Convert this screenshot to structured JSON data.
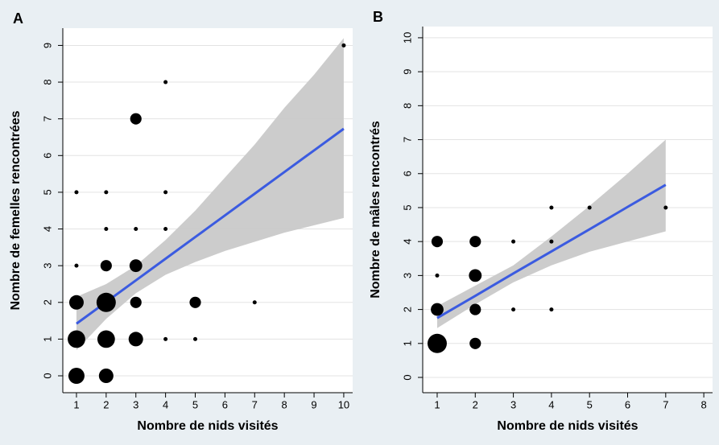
{
  "chart_data": [
    {
      "type": "scatter",
      "panel_label": "A",
      "xlabel": "Nombre de nids visités",
      "ylabel": "Nombre de femelles rencontrées",
      "x": [
        1,
        2,
        1,
        2,
        3,
        4,
        5,
        1,
        2,
        3,
        5,
        7,
        1,
        2,
        3,
        2,
        3,
        4,
        1,
        2,
        4,
        3,
        4,
        10
      ],
      "y": [
        0,
        0,
        1,
        1,
        1,
        1,
        1,
        2,
        2,
        2,
        2,
        2,
        3,
        3,
        3,
        4,
        4,
        4,
        5,
        5,
        5,
        7,
        8,
        9
      ],
      "sizes": [
        16,
        13,
        19,
        19,
        13,
        1,
        1,
        13,
        23,
        8,
        8,
        1,
        1,
        8,
        10,
        1,
        1,
        1,
        1,
        1,
        1,
        8,
        1,
        1
      ],
      "color": "#000000",
      "fit": {
        "color": "#3b5be0",
        "band_color": "#c9c9c9",
        "x": [
          1,
          2,
          3,
          4,
          5,
          6,
          7,
          8,
          9,
          10
        ],
        "values": [
          1.42,
          2.01,
          2.6,
          3.19,
          3.78,
          4.37,
          4.96,
          5.55,
          6.14,
          6.73
        ],
        "lower": [
          0.7,
          1.55,
          2.25,
          2.75,
          3.1,
          3.4,
          3.65,
          3.9,
          4.1,
          4.3
        ],
        "upper": [
          2.15,
          2.5,
          3.0,
          3.7,
          4.5,
          5.4,
          6.3,
          7.3,
          8.2,
          9.2
        ]
      },
      "xlim": [
        0.54,
        10.3
      ],
      "ylim": [
        -0.46,
        9.47
      ],
      "xticks": [
        1,
        2,
        3,
        4,
        5,
        6,
        7,
        8,
        9,
        10
      ],
      "yticks": [
        0,
        1,
        2,
        3,
        4,
        5,
        6,
        7,
        8,
        9
      ],
      "grid": true
    },
    {
      "type": "scatter",
      "panel_label": "B",
      "xlabel": "Nombre de nids visités",
      "ylabel": "Nombre de mâles rencontrés",
      "x": [
        1,
        2,
        1,
        2,
        3,
        4,
        1,
        2,
        1,
        2,
        3,
        4,
        4,
        5,
        7
      ],
      "y": [
        1,
        1,
        2,
        2,
        2,
        2,
        3,
        3,
        4,
        4,
        4,
        4,
        5,
        5,
        5
      ],
      "sizes": [
        23,
        8,
        10,
        8,
        1,
        1,
        1,
        10,
        8,
        8,
        1,
        1,
        1,
        1,
        1
      ],
      "color": "#000000",
      "fit": {
        "color": "#3b5be0",
        "band_color": "#c9c9c9",
        "x": [
          1,
          2,
          3,
          4,
          5,
          6,
          7
        ],
        "values": [
          1.75,
          2.4,
          3.06,
          3.71,
          4.36,
          5.02,
          5.67
        ],
        "lower": [
          1.45,
          2.15,
          2.8,
          3.3,
          3.7,
          4.0,
          4.3
        ],
        "upper": [
          2.1,
          2.7,
          3.3,
          4.15,
          5.05,
          6.0,
          7.0
        ]
      },
      "xlim": [
        0.62,
        8.23
      ],
      "ylim": [
        -0.45,
        10.33
      ],
      "xticks": [
        1,
        2,
        3,
        4,
        5,
        6,
        7,
        8
      ],
      "yticks": [
        0,
        1,
        2,
        3,
        4,
        5,
        6,
        7,
        8,
        9,
        10
      ],
      "grid": true
    }
  ]
}
